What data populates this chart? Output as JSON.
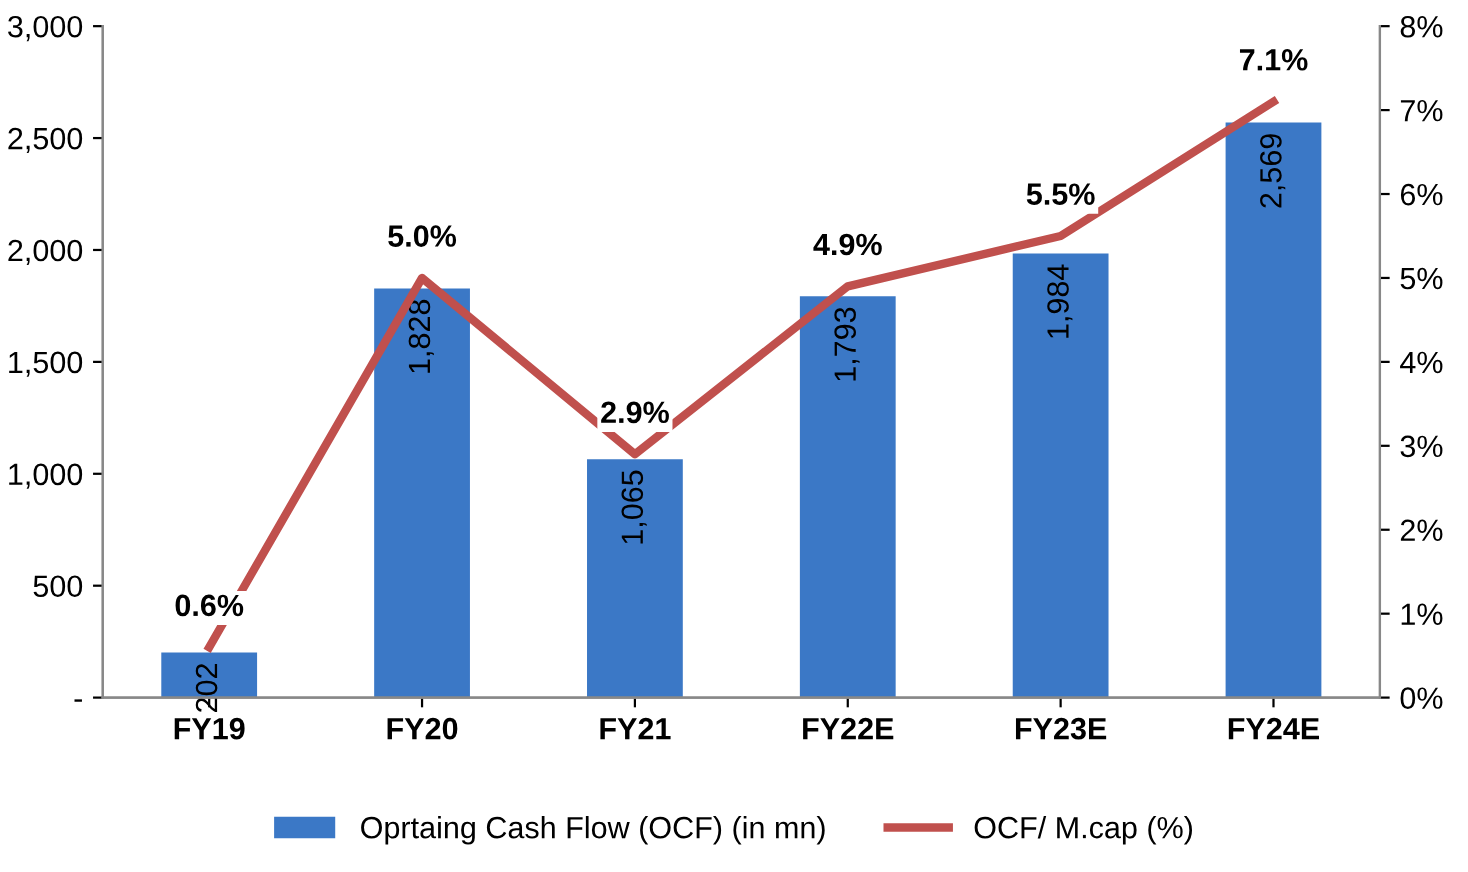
{
  "chart_data": {
    "type": "bar",
    "categories": [
      "FY19",
      "FY20",
      "FY21",
      "FY22E",
      "FY23E",
      "FY24E"
    ],
    "series": [
      {
        "name": "Oprtaing Cash Flow (OCF) (in mn)",
        "color": "#3b78c6",
        "values": [
          202,
          1828,
          1065,
          1793,
          1984,
          2569
        ],
        "value_labels": [
          "202",
          "1,828",
          "1,065",
          "1,793",
          "1,984",
          "2,569"
        ]
      },
      {
        "name": "OCF/ M.cap (%)",
        "type": "line",
        "axis": "y2",
        "color": "#c0504d",
        "values": [
          0.6,
          5.0,
          2.9,
          4.9,
          5.5,
          7.1
        ],
        "value_labels": [
          "0.6%",
          "5.0%",
          "2.9%",
          "4.9%",
          "5.5%",
          "7.1%"
        ]
      }
    ],
    "ylim": [
      0,
      3000
    ],
    "yticks": [
      {
        "value": 0,
        "label": "-"
      },
      500,
      {
        "value": 1000,
        "label": "1,000"
      },
      {
        "value": 1500,
        "label": "1,500"
      },
      {
        "value": 2000,
        "label": "2,000"
      },
      {
        "value": 2500,
        "label": "2,500"
      },
      {
        "value": 3000,
        "label": "3,000"
      }
    ],
    "y2lim": [
      0,
      8
    ],
    "y2ticks": [
      {
        "value": 0,
        "label": "0%"
      },
      {
        "value": 1,
        "label": "1%"
      },
      {
        "value": 2,
        "label": "2%"
      },
      {
        "value": 3,
        "label": "3%"
      },
      {
        "value": 4,
        "label": "4%"
      },
      {
        "value": 5,
        "label": "5%"
      },
      {
        "value": 6,
        "label": "6%"
      },
      {
        "value": 7,
        "label": "7%"
      },
      {
        "value": 8,
        "label": "8%"
      }
    ],
    "legend": "bottom",
    "grid": false,
    "marker": "none",
    "line_style": "solid"
  }
}
